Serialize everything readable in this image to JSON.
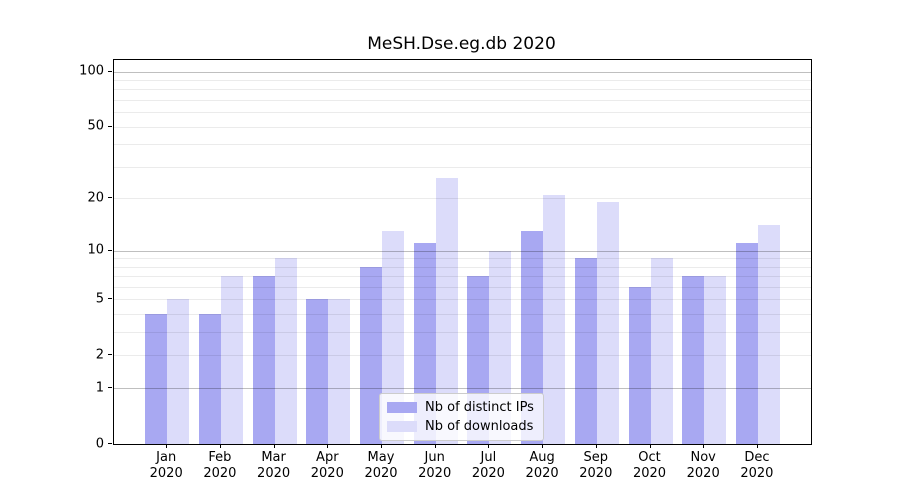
{
  "chart_data": {
    "type": "bar",
    "title": "MeSH.Dse.eg.db 2020",
    "categories": [
      {
        "month": "Jan",
        "year": "2020"
      },
      {
        "month": "Feb",
        "year": "2020"
      },
      {
        "month": "Mar",
        "year": "2020"
      },
      {
        "month": "Apr",
        "year": "2020"
      },
      {
        "month": "May",
        "year": "2020"
      },
      {
        "month": "Jun",
        "year": "2020"
      },
      {
        "month": "Jul",
        "year": "2020"
      },
      {
        "month": "Aug",
        "year": "2020"
      },
      {
        "month": "Sep",
        "year": "2020"
      },
      {
        "month": "Oct",
        "year": "2020"
      },
      {
        "month": "Nov",
        "year": "2020"
      },
      {
        "month": "Dec",
        "year": "2020"
      }
    ],
    "series": [
      {
        "name": "Nb of distinct IPs",
        "color": "#a8a8f2",
        "values": [
          4,
          4,
          7,
          5,
          8,
          11,
          7,
          13,
          9,
          6,
          7,
          11
        ]
      },
      {
        "name": "Nb of downloads",
        "color": "#dcdcfa",
        "values": [
          5,
          7,
          9,
          5,
          13,
          26,
          10,
          21,
          19,
          9,
          7,
          14
        ]
      }
    ],
    "yscale": "log1p",
    "ylim": [
      0,
      116
    ],
    "y_tick_labels": [
      "0",
      "1",
      "2",
      "5",
      "10",
      "20",
      "50",
      "100"
    ],
    "y_tick_values": [
      0,
      1,
      2,
      5,
      10,
      20,
      50,
      100
    ],
    "y_major_gridlines": [
      1,
      10,
      100
    ],
    "y_minor_gridlines": [
      2,
      3,
      4,
      5,
      6,
      7,
      8,
      9,
      20,
      30,
      40,
      50,
      60,
      70,
      80,
      90
    ],
    "grid": true,
    "legend_position": "lower-center"
  },
  "colors": {
    "background": "#ffffff",
    "spine": "#000000",
    "text": "#000000",
    "legend_border": "#cccccc"
  }
}
